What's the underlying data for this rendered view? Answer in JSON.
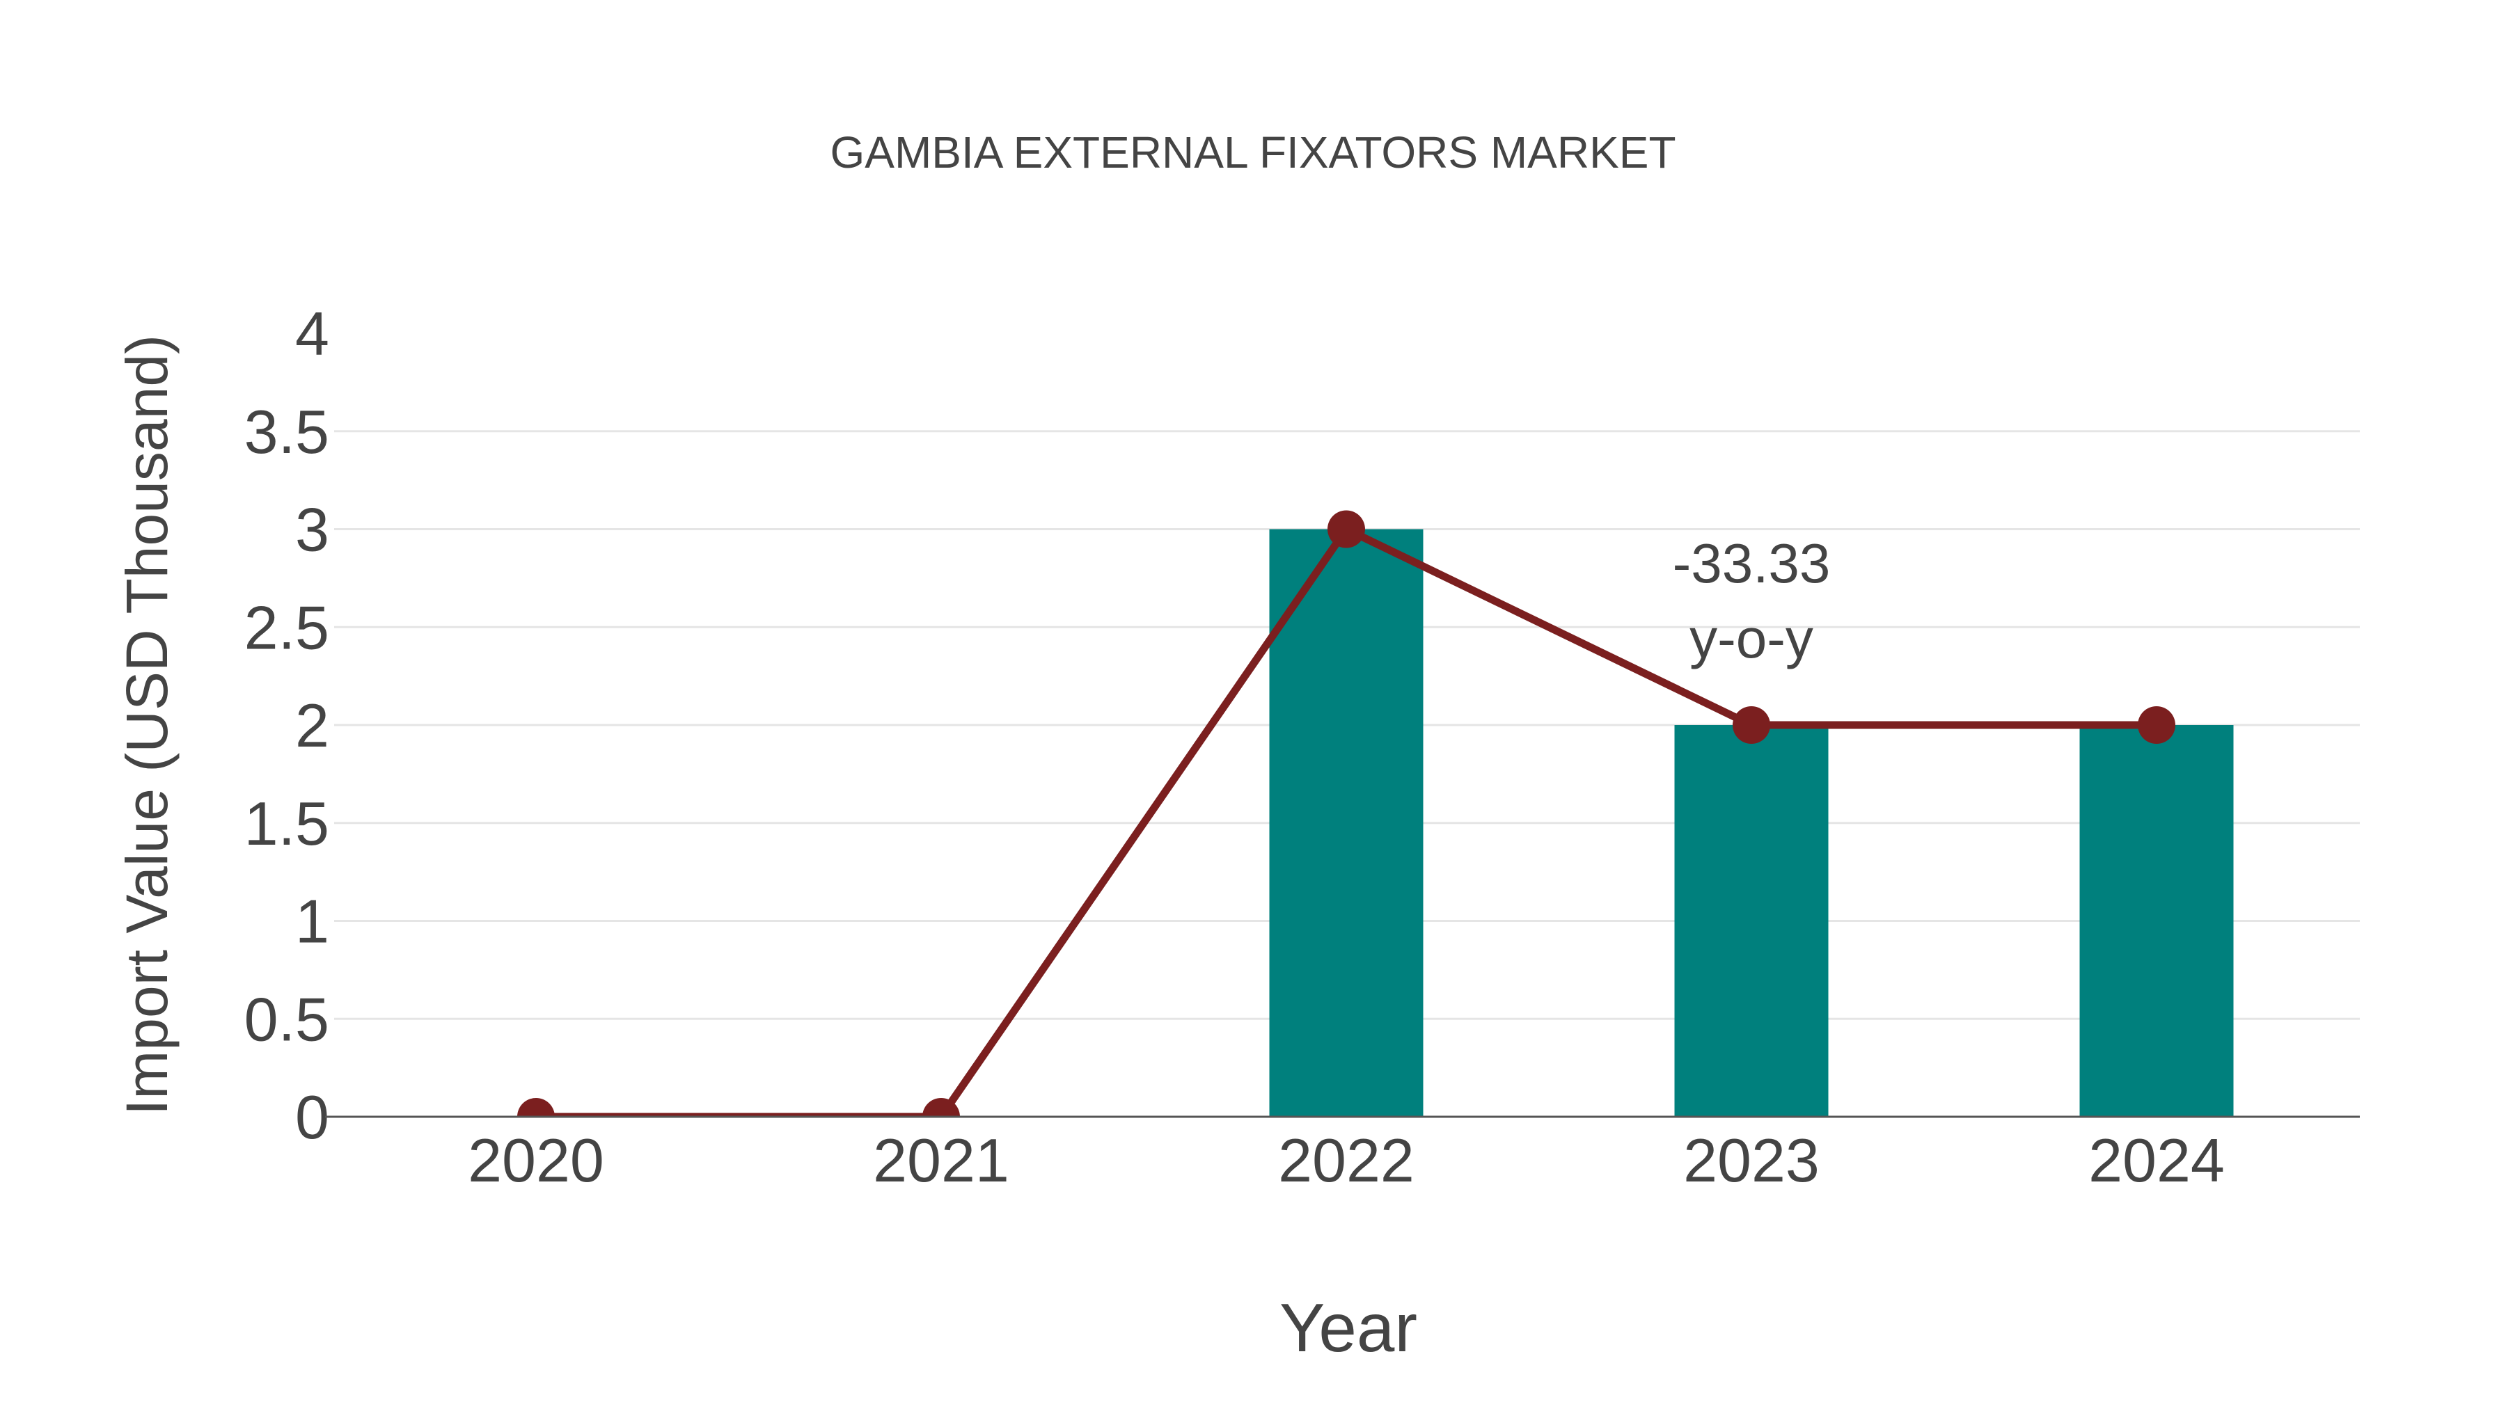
{
  "chart_data": {
    "type": "bar+line",
    "title": "GAMBIA EXTERNAL FIXATORS MARKET",
    "xlabel": "Year",
    "ylabel": "Import Value (USD Thousand)",
    "categories": [
      "2020",
      "2021",
      "2022",
      "2023",
      "2024"
    ],
    "series": [
      {
        "name": "Import Value (bar)",
        "type": "bar",
        "color": "#00807d",
        "values": [
          0,
          0,
          3,
          2,
          2
        ]
      },
      {
        "name": "Import Value (line)",
        "type": "line",
        "color": "#7b1f1f",
        "values": [
          0,
          0,
          3,
          2,
          2
        ]
      }
    ],
    "ylim": [
      0,
      4
    ],
    "yticks": [
      "0",
      "0.5",
      "1",
      "1.5",
      "2",
      "2.5",
      "3",
      "3.5",
      "4"
    ],
    "ytick_values": [
      0,
      0.5,
      1,
      1.5,
      2,
      2.5,
      3,
      3.5,
      4
    ],
    "grid": true,
    "legend": "none",
    "annotations": [
      {
        "category": "2023",
        "value_text": "-33.33",
        "label_text": "y-o-y"
      }
    ]
  },
  "colors": {
    "bar": "#00807d",
    "line": "#7b1f1f",
    "grid": "#e5e5e5",
    "axis": "#555555",
    "text": "#444444"
  }
}
